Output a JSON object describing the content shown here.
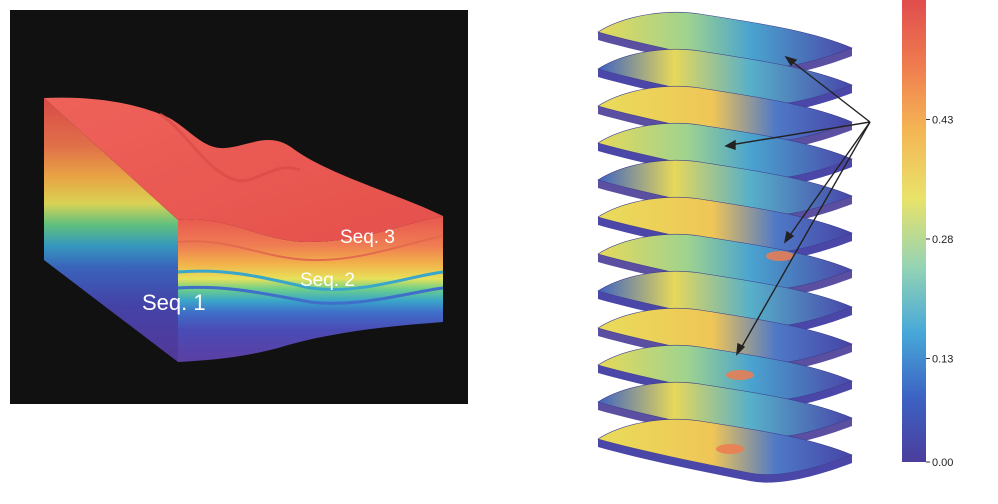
{
  "model_panel": {
    "labels": {
      "seq1": "Seq. 1",
      "seq2": "Seq. 2",
      "seq3": "Seq. 3"
    },
    "background_color": "#111111",
    "layer_colors": [
      "#5b3fa3",
      "#4a4bb5",
      "#3f6fc9",
      "#3aa6c9",
      "#6ccf8a",
      "#e7e15a",
      "#f2b34a",
      "#ef7c53",
      "#e8564f"
    ]
  },
  "colorbar": {
    "ticks": [
      "0.00",
      "0.13",
      "0.28",
      "0.43"
    ],
    "tick_values": [
      0.0,
      0.13,
      0.28,
      0.43
    ],
    "max_value": 0.58,
    "colors": [
      "#4b3d9c",
      "#3c63c4",
      "#47a8d8",
      "#93d3b5",
      "#e9e36a",
      "#f4b554",
      "#ef7b4f",
      "#e04d4d"
    ]
  },
  "slices": {
    "count": 12,
    "arrow_color": "#222222"
  }
}
